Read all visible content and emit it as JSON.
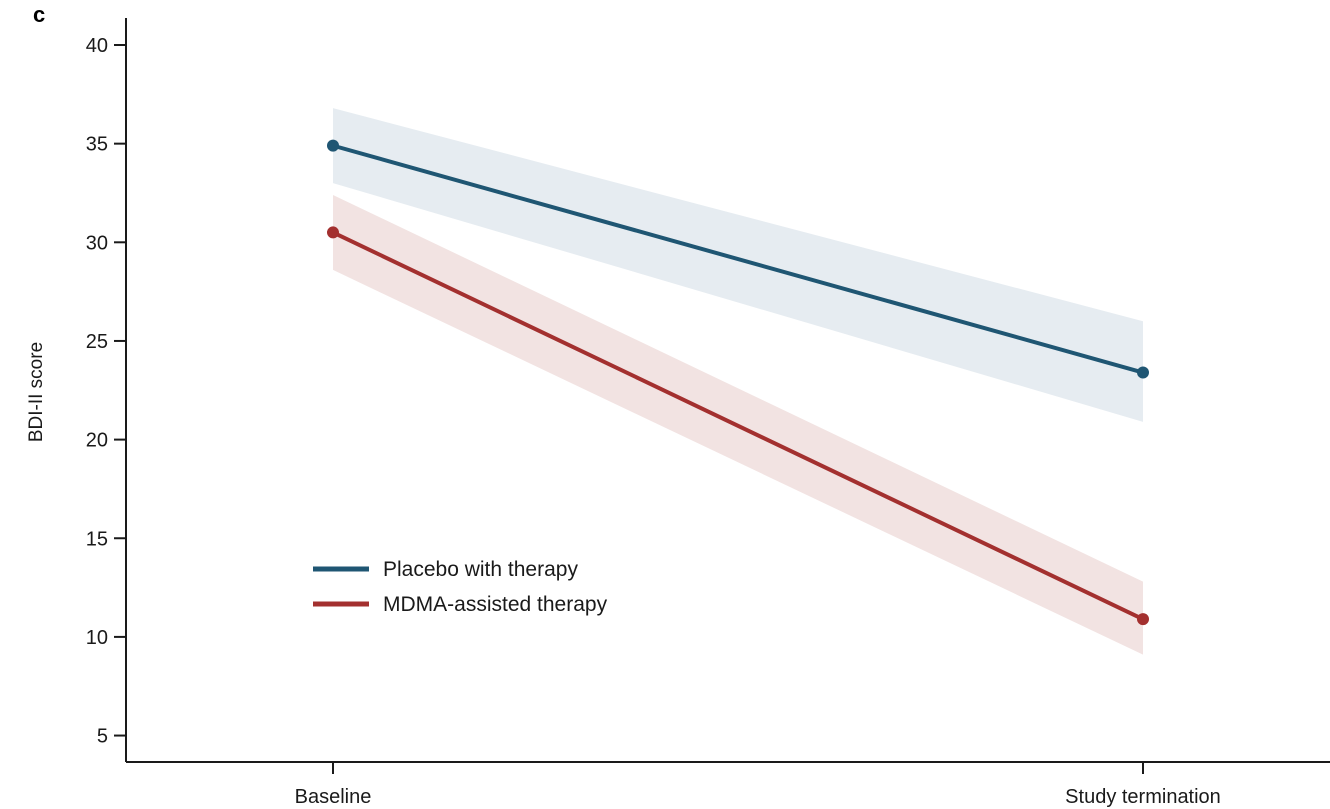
{
  "panel_label": "c",
  "chart_data": {
    "type": "line",
    "categories": [
      "Baseline",
      "Study termination"
    ],
    "ylabel": "BDI-II score",
    "xlabel": "",
    "ylim": [
      3,
      41
    ],
    "yticks": [
      5,
      10,
      15,
      20,
      25,
      30,
      35,
      40
    ],
    "grid": false,
    "legend_position": "bottom-left",
    "series": [
      {
        "name": "Placebo with therapy",
        "color": "#1f5673",
        "band_color": "#e6ecf1",
        "values": [
          34.9,
          23.4
        ],
        "lower": [
          33.0,
          20.9
        ],
        "upper": [
          36.8,
          26.0
        ]
      },
      {
        "name": "MDMA-assisted therapy",
        "color": "#a3302f",
        "band_color": "#f2e3e2",
        "values": [
          30.5,
          10.9
        ],
        "lower": [
          28.6,
          9.1
        ],
        "upper": [
          32.4,
          12.8
        ]
      }
    ]
  }
}
